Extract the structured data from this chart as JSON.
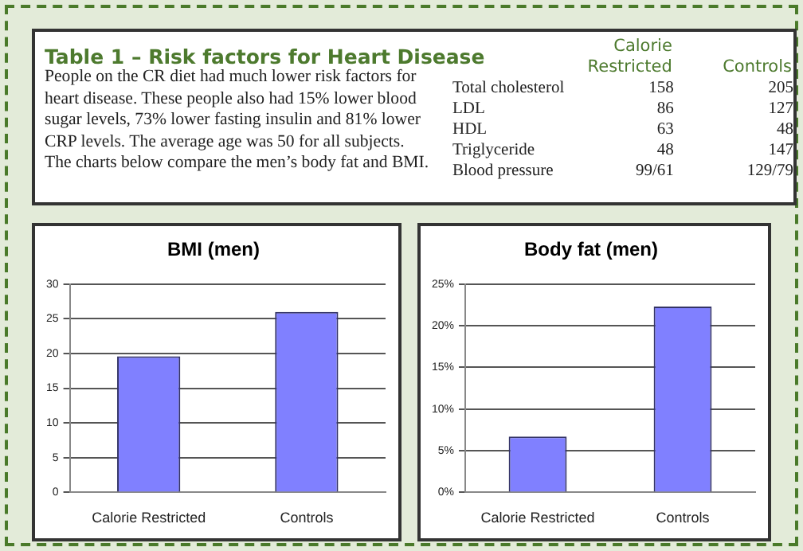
{
  "chart_data": [
    {
      "type": "other",
      "title": "Table 1 – Risk factors for Heart Disease",
      "annotations": [
        "People on the CR diet had much lower risk factors for heart disease. These people also had 15% lower blood sugar levels, 73% lower fasting insulin and 81% lower CRP levels. The average age was 50 for all subjects. The charts below compare the men’s body fat and BMI.",
        "Calorie Restricted",
        "Controls",
        "Total cholesterol",
        "158",
        "205",
        "LDL",
        "86",
        "127",
        "HDL",
        "63",
        "48",
        "Triglyceride",
        "48",
        "147",
        "Blood pressure",
        "99/61",
        "129/79"
      ]
    },
    {
      "type": "bar",
      "title": "BMI (men)",
      "categories": [
        "Calorie Restricted",
        "Controls"
      ],
      "values": [
        19.6,
        26.0
      ],
      "color": "#8080ff",
      "ylim": [
        0,
        30
      ],
      "yticks": [
        0,
        5,
        10,
        15,
        20,
        25,
        30
      ],
      "grid": "y",
      "legend": false
    },
    {
      "type": "bar",
      "title": "Body fat (men)",
      "categories": [
        "Calorie Restricted",
        "Controls"
      ],
      "values": [
        6.7,
        22.3
      ],
      "color": "#8080ff",
      "ylim": [
        0,
        25
      ],
      "yticks": [
        {
          "value": 0,
          "label": "0%"
        },
        {
          "value": 5,
          "label": "5%"
        },
        {
          "value": 10,
          "label": "10%"
        },
        {
          "value": 15,
          "label": "15%"
        },
        {
          "value": 20,
          "label": "20%"
        },
        {
          "value": 25,
          "label": "25%"
        }
      ],
      "grid": "y",
      "legend": false
    }
  ]
}
